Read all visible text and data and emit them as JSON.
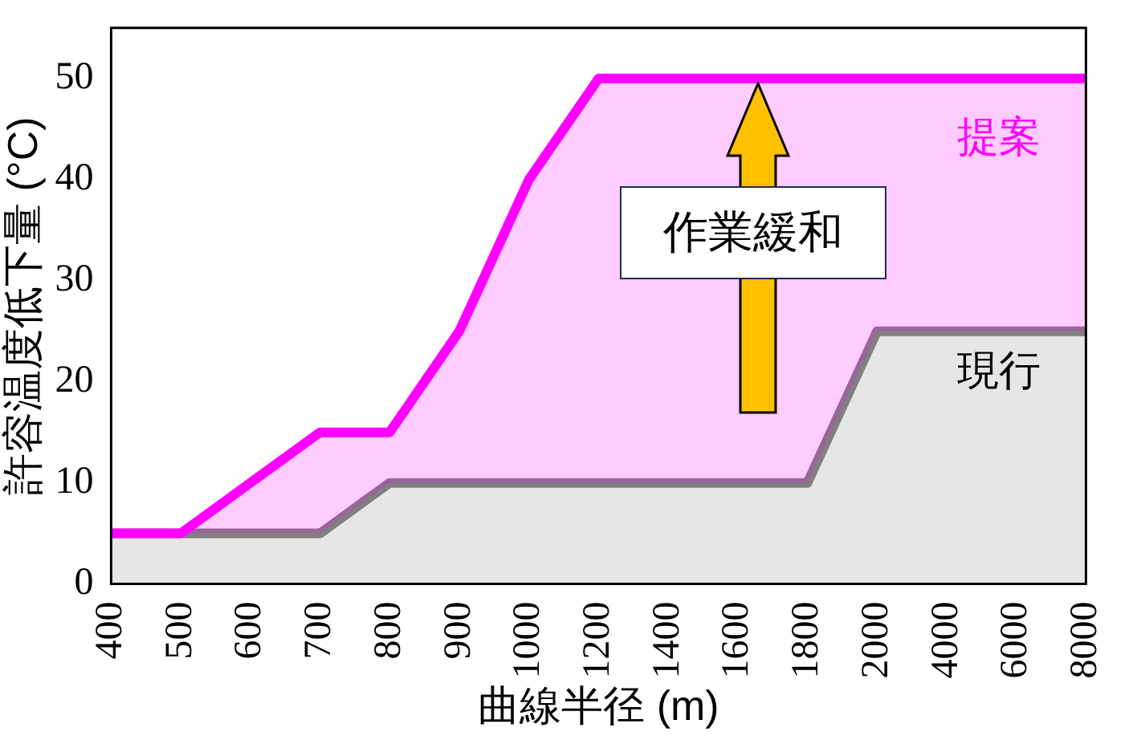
{
  "chart_data": {
    "type": "area",
    "xlabel": "曲線半径 (m)",
    "ylabel": "許容温度低下量 (°C)",
    "categories": [
      "400",
      "500",
      "600",
      "700",
      "800",
      "900",
      "1000",
      "1200",
      "1400",
      "1600",
      "1800",
      "2000",
      "4000",
      "6000",
      "8000"
    ],
    "series": [
      {
        "name": "現行",
        "color": "#808080",
        "values": [
          5,
          5,
          5,
          5,
          10,
          10,
          10,
          10,
          10,
          10,
          10,
          25,
          25,
          25,
          25
        ]
      },
      {
        "name": "提案",
        "color": "#ff00ff",
        "values": [
          5,
          5,
          10,
          15,
          15,
          25,
          40,
          50,
          50,
          50,
          50,
          50,
          50,
          50,
          50
        ]
      }
    ],
    "ylim": [
      0,
      55
    ],
    "yticks": [
      0,
      10,
      20,
      30,
      40,
      50
    ],
    "grid": false,
    "legend": false,
    "annotations": [
      "作業緩和"
    ]
  }
}
